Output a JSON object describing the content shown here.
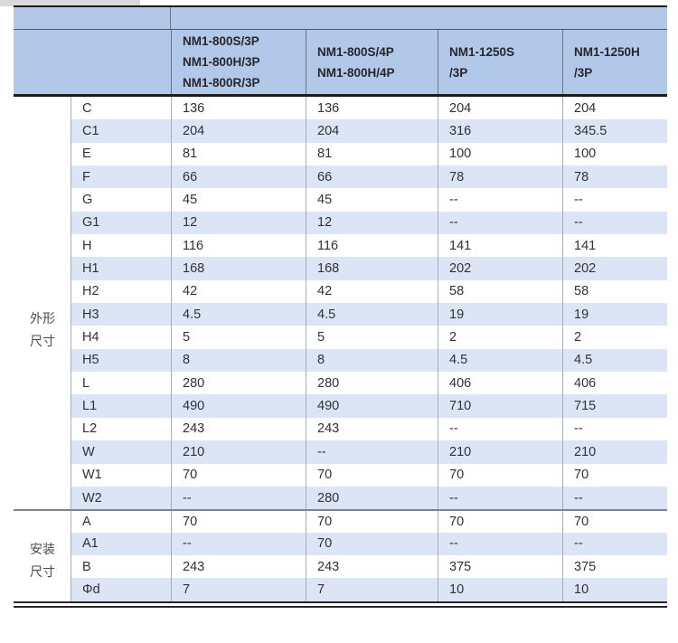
{
  "colors": {
    "header_bg": "#b2c8e9",
    "stripe_bg": "#dce5f5",
    "dark_border": "#1c1c1c",
    "grid_line": "#a6adbc",
    "header_grid": "#66748e",
    "section_divider": "#7d8492"
  },
  "header": {
    "model_columns": [
      {
        "lines": [
          "NM1-800S/3P",
          "NM1-800H/3P",
          "NM1-800R/3P"
        ]
      },
      {
        "lines": [
          "NM1-800S/4P",
          "NM1-800H/4P"
        ]
      },
      {
        "lines": [
          "NM1-1250S",
          "/3P"
        ]
      },
      {
        "lines": [
          "NM1-1250H",
          "/3P"
        ]
      }
    ]
  },
  "sections": [
    {
      "label_lines": [
        "外形",
        "尺寸"
      ],
      "rows": [
        {
          "label": "C",
          "values": [
            "136",
            "136",
            "204",
            "204"
          ]
        },
        {
          "label": "C1",
          "values": [
            "204",
            "204",
            "316",
            "345.5"
          ]
        },
        {
          "label": "E",
          "values": [
            "81",
            "81",
            "100",
            "100"
          ]
        },
        {
          "label": "F",
          "values": [
            "66",
            "66",
            "78",
            "78"
          ]
        },
        {
          "label": "G",
          "values": [
            "45",
            "45",
            "--",
            "--"
          ]
        },
        {
          "label": "G1",
          "values": [
            "12",
            "12",
            "--",
            "--"
          ]
        },
        {
          "label": "H",
          "values": [
            "116",
            "116",
            "141",
            "141"
          ]
        },
        {
          "label": "H1",
          "values": [
            "168",
            "168",
            "202",
            "202"
          ]
        },
        {
          "label": "H2",
          "values": [
            "42",
            "42",
            "58",
            "58"
          ]
        },
        {
          "label": "H3",
          "values": [
            "4.5",
            "4.5",
            "19",
            "19"
          ]
        },
        {
          "label": "H4",
          "values": [
            "5",
            "5",
            "2",
            "2"
          ]
        },
        {
          "label": "H5",
          "values": [
            "8",
            "8",
            "4.5",
            "4.5"
          ]
        },
        {
          "label": "L",
          "values": [
            "280",
            "280",
            "406",
            "406"
          ]
        },
        {
          "label": "L1",
          "values": [
            "490",
            "490",
            "710",
            "715"
          ]
        },
        {
          "label": "L2",
          "values": [
            "243",
            "243",
            "--",
            "--"
          ]
        },
        {
          "label": "W",
          "values": [
            "210",
            "--",
            "210",
            "210"
          ]
        },
        {
          "label": "W1",
          "values": [
            "70",
            "70",
            "70",
            "70"
          ]
        },
        {
          "label": "W2",
          "values": [
            "--",
            "280",
            "--",
            "--"
          ]
        }
      ]
    },
    {
      "label_lines": [
        "安装",
        "尺寸"
      ],
      "rows": [
        {
          "label": "A",
          "values": [
            "70",
            "70",
            "70",
            "70"
          ]
        },
        {
          "label": "A1",
          "values": [
            "--",
            "70",
            "--",
            "--"
          ]
        },
        {
          "label": "B",
          "values": [
            "243",
            "243",
            "375",
            "375"
          ]
        },
        {
          "label": "Φd",
          "values": [
            "7",
            "7",
            "10",
            "10"
          ]
        }
      ]
    }
  ]
}
